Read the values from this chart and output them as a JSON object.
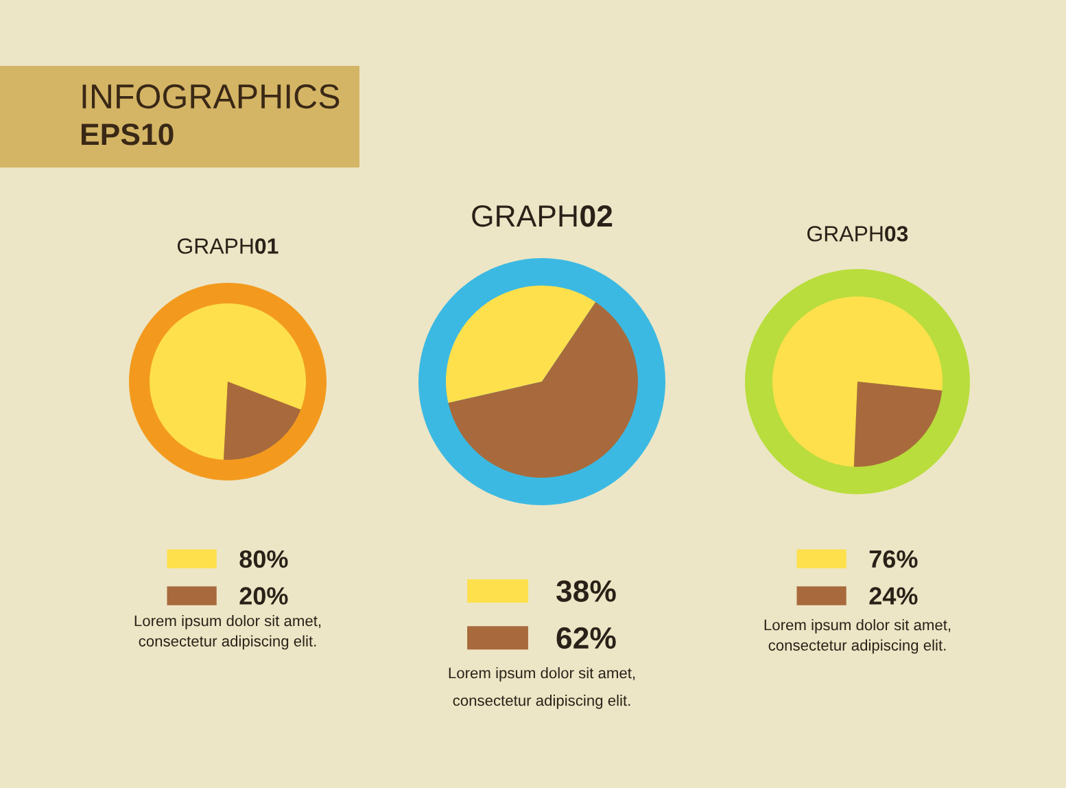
{
  "chart_data": [
    {
      "type": "other",
      "title": "INFOGRAPHICS",
      "subtitle": "EPS10"
    },
    {
      "type": "pie",
      "title": "GRAPH01",
      "categories": [
        "80%",
        "20%"
      ],
      "values": [
        80,
        20
      ],
      "colors": [
        "#fde04c",
        "#a86a3c"
      ],
      "legend": "bottom",
      "annotations": [
        "Lorem ipsum dolor sit amet,\nconsectetur adipiscing elit."
      ]
    },
    {
      "type": "pie",
      "title": "GRAPH02",
      "categories": [
        "38%",
        "62%"
      ],
      "values": [
        38,
        62
      ],
      "colors": [
        "#fde04c",
        "#a86a3c"
      ],
      "legend": "bottom",
      "annotations": [
        "Lorem ipsum dolor sit amet,\nconsectetur adipiscing elit."
      ]
    },
    {
      "type": "pie",
      "title": "GRAPH03",
      "categories": [
        "76%",
        "24%"
      ],
      "values": [
        76,
        24
      ],
      "colors": [
        "#fde04c",
        "#a86a3c"
      ],
      "legend": "bottom",
      "annotations": [
        "Lorem ipsum dolor sit amet,\nconsectetur adipiscing elit."
      ]
    }
  ]
}
